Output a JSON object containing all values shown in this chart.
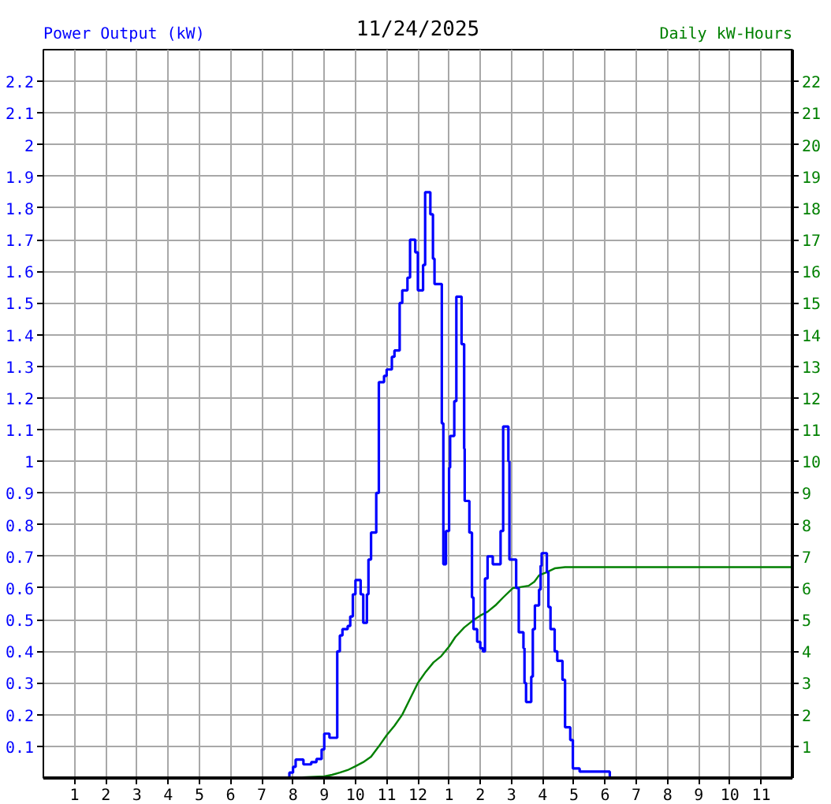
{
  "chart_data": {
    "type": "step",
    "title": "11/24/2025",
    "ylabel": "Power Output (kW)",
    "y2label": "Daily kW-Hours",
    "xlim": [
      "2025-11-24T00:00",
      "2025-11-25T00:00"
    ],
    "xticks": [
      {
        "value": "2025-11-24T01:00",
        "label": "1"
      },
      {
        "value": "2025-11-24T02:00",
        "label": "2"
      },
      {
        "value": "2025-11-24T03:00",
        "label": "3"
      },
      {
        "value": "2025-11-24T04:00",
        "label": "4"
      },
      {
        "value": "2025-11-24T05:00",
        "label": "5"
      },
      {
        "value": "2025-11-24T06:00",
        "label": "6"
      },
      {
        "value": "2025-11-24T07:00",
        "label": "7"
      },
      {
        "value": "2025-11-24T08:00",
        "label": "8"
      },
      {
        "value": "2025-11-24T09:00",
        "label": "9"
      },
      {
        "value": "2025-11-24T10:00",
        "label": "10"
      },
      {
        "value": "2025-11-24T11:00",
        "label": "11"
      },
      {
        "value": "2025-11-24T12:00",
        "label": "12"
      },
      {
        "value": "2025-11-24T13:00",
        "label": "1"
      },
      {
        "value": "2025-11-24T14:00",
        "label": "2"
      },
      {
        "value": "2025-11-24T15:00",
        "label": "3"
      },
      {
        "value": "2025-11-24T16:00",
        "label": "4"
      },
      {
        "value": "2025-11-24T17:00",
        "label": "5"
      },
      {
        "value": "2025-11-24T18:00",
        "label": "6"
      },
      {
        "value": "2025-11-24T19:00",
        "label": "7"
      },
      {
        "value": "2025-11-24T20:00",
        "label": "8"
      },
      {
        "value": "2025-11-24T21:00",
        "label": "9"
      },
      {
        "value": "2025-11-24T22:00",
        "label": "10"
      },
      {
        "value": "2025-11-24T23:00",
        "label": "11"
      }
    ],
    "ylim": [
      0,
      2.3
    ],
    "yticks": [
      0.1,
      0.2,
      0.3,
      0.4,
      0.5,
      0.6,
      0.7,
      0.8,
      0.9,
      1.0,
      1.1,
      1.2,
      1.3,
      1.4,
      1.5,
      1.6,
      1.7,
      1.8,
      1.9,
      2.0,
      2.1,
      2.2
    ],
    "y2lim": [
      0,
      23
    ],
    "y2ticks": [
      1,
      2,
      3,
      4,
      5,
      6,
      7,
      8,
      9,
      10,
      11,
      12,
      13,
      14,
      15,
      16,
      17,
      18,
      19,
      20,
      21,
      22
    ],
    "grid": true,
    "series": [
      {
        "color": "#0000ff",
        "x": [
          "2025-11-24T07:51",
          "2025-11-24T07:53",
          "2025-11-24T08:00",
          "2025-11-24T08:05",
          "2025-11-24T08:20",
          "2025-11-24T08:35",
          "2025-11-24T08:45",
          "2025-11-24T08:55",
          "2025-11-24T09:00",
          "2025-11-24T09:10",
          "2025-11-24T09:25",
          "2025-11-24T09:30",
          "2025-11-24T09:35",
          "2025-11-24T09:45",
          "2025-11-24T09:50",
          "2025-11-24T09:55",
          "2025-11-24T10:00",
          "2025-11-24T10:10",
          "2025-11-24T10:15",
          "2025-11-24T10:22",
          "2025-11-24T10:25",
          "2025-11-24T10:30",
          "2025-11-24T10:40",
          "2025-11-24T10:45",
          "2025-11-24T10:55",
          "2025-11-24T11:00",
          "2025-11-24T11:10",
          "2025-11-24T11:15",
          "2025-11-24T11:25",
          "2025-11-24T11:30",
          "2025-11-24T11:40",
          "2025-11-24T11:45",
          "2025-11-24T11:55",
          "2025-11-24T12:00",
          "2025-11-24T12:10",
          "2025-11-24T12:14",
          "2025-11-24T12:24",
          "2025-11-24T12:29",
          "2025-11-24T12:32",
          "2025-11-24T12:46",
          "2025-11-24T12:49",
          "2025-11-24T12:54",
          "2025-11-24T13:00",
          "2025-11-24T13:02",
          "2025-11-24T13:10",
          "2025-11-24T13:14",
          "2025-11-24T13:24",
          "2025-11-24T13:29",
          "2025-11-24T13:30",
          "2025-11-24T13:39",
          "2025-11-24T13:44",
          "2025-11-24T13:47",
          "2025-11-24T13:54",
          "2025-11-24T14:00",
          "2025-11-24T14:05",
          "2025-11-24T14:09",
          "2025-11-24T14:14",
          "2025-11-24T14:24",
          "2025-11-24T14:39",
          "2025-11-24T14:44",
          "2025-11-24T14:54",
          "2025-11-24T14:56",
          "2025-11-24T15:09",
          "2025-11-24T15:14",
          "2025-11-24T15:23",
          "2025-11-24T15:25",
          "2025-11-24T15:28",
          "2025-11-24T15:38",
          "2025-11-24T15:41",
          "2025-11-24T15:45",
          "2025-11-24T15:53",
          "2025-11-24T15:56",
          "2025-11-24T15:58",
          "2025-11-24T16:08",
          "2025-11-24T16:11",
          "2025-11-24T16:15",
          "2025-11-24T16:23",
          "2025-11-24T16:28",
          "2025-11-24T16:38",
          "2025-11-24T16:43",
          "2025-11-24T16:53",
          "2025-11-24T16:58",
          "2025-11-24T17:11",
          "2025-11-24T18:09"
        ],
        "values": [
          0,
          0.017,
          0.035,
          0.058,
          0.043,
          0.05,
          0.06,
          0.09,
          0.14,
          0.127,
          0.4,
          0.45,
          0.47,
          0.48,
          0.51,
          0.58,
          0.625,
          0.58,
          0.49,
          0.58,
          0.69,
          0.775,
          0.9,
          1.25,
          1.27,
          1.29,
          1.33,
          1.35,
          1.5,
          1.54,
          1.58,
          1.7,
          1.66,
          1.54,
          1.62,
          1.85,
          1.78,
          1.64,
          1.56,
          1.12,
          0.675,
          0.78,
          0.98,
          1.08,
          1.19,
          1.52,
          1.37,
          1.04,
          0.875,
          0.775,
          0.57,
          0.47,
          0.43,
          0.41,
          0.4,
          0.63,
          0.7,
          0.675,
          0.78,
          1.11,
          1.0,
          0.69,
          0.6,
          0.46,
          0.41,
          0.3,
          0.24,
          0.32,
          0.47,
          0.545,
          0.595,
          0.67,
          0.71,
          0.65,
          0.54,
          0.47,
          0.4,
          0.37,
          0.31,
          0.16,
          0.12,
          0.03,
          0.02,
          0
        ]
      },
      {
        "type": "line",
        "axis": "y2",
        "color": "#008000",
        "x": [
          "2025-11-24T07:51",
          "2025-11-24T09:00",
          "2025-11-24T09:15",
          "2025-11-24T09:30",
          "2025-11-24T09:45",
          "2025-11-24T10:00",
          "2025-11-24T10:15",
          "2025-11-24T10:30",
          "2025-11-24T10:45",
          "2025-11-24T11:00",
          "2025-11-24T11:15",
          "2025-11-24T11:30",
          "2025-11-24T11:45",
          "2025-11-24T12:00",
          "2025-11-24T12:15",
          "2025-11-24T12:30",
          "2025-11-24T12:45",
          "2025-11-24T13:00",
          "2025-11-24T13:12",
          "2025-11-24T13:29",
          "2025-11-24T13:48",
          "2025-11-24T14:00",
          "2025-11-24T14:14",
          "2025-11-24T14:29",
          "2025-11-24T14:44",
          "2025-11-24T15:03",
          "2025-11-24T15:14",
          "2025-11-24T15:33",
          "2025-11-24T15:44",
          "2025-11-24T15:53",
          "2025-11-24T16:08",
          "2025-11-24T16:23",
          "2025-11-24T16:43",
          "2025-11-25T00:00"
        ],
        "values": [
          0,
          0.05,
          0.1,
          0.17,
          0.25,
          0.37,
          0.5,
          0.67,
          1.0,
          1.35,
          1.65,
          2.0,
          2.5,
          3.0,
          3.35,
          3.65,
          3.85,
          4.15,
          4.45,
          4.75,
          5.0,
          5.13,
          5.25,
          5.45,
          5.7,
          6.0,
          6.02,
          6.07,
          6.2,
          6.4,
          6.5,
          6.62,
          6.66,
          6.66
        ]
      }
    ]
  }
}
